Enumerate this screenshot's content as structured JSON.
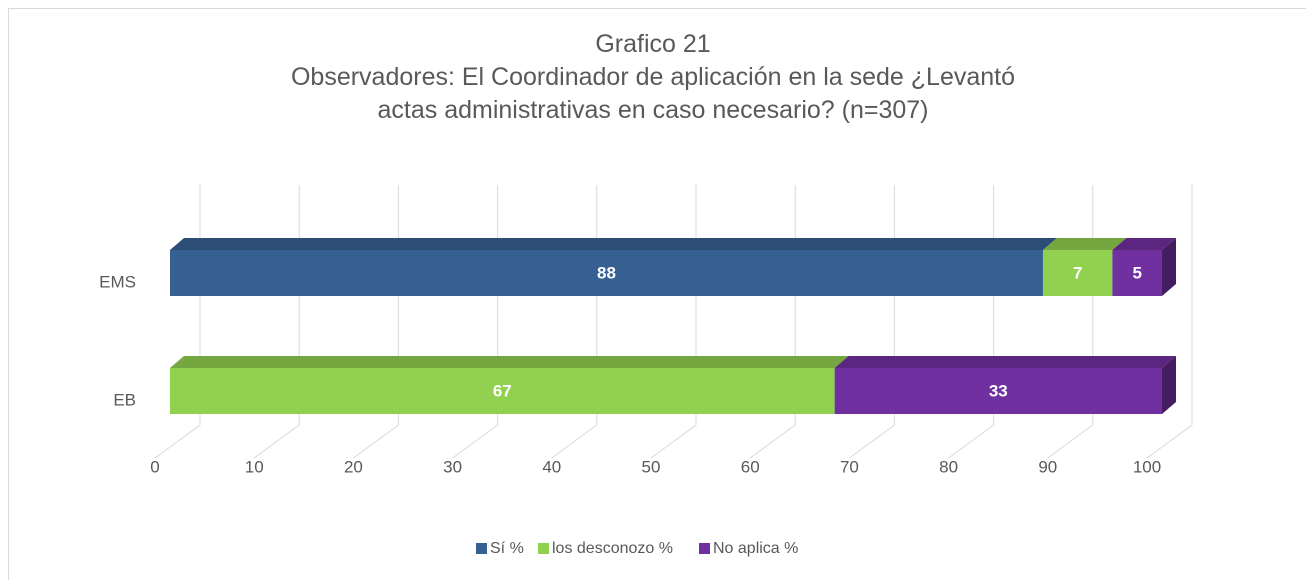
{
  "chart_data": {
    "type": "bar",
    "orientation": "horizontal",
    "stacked": true,
    "three_d": true,
    "title": "Grafico 21",
    "subtitle": "Observadores: El Coordinador de aplicación en la sede ¿Levantó actas administrativas en caso necesario? (n=307)",
    "categories": [
      "EMS",
      "EB"
    ],
    "series": [
      {
        "name": "Sí %",
        "color": "#376092",
        "values": [
          88,
          0
        ]
      },
      {
        "name": "los desconozo %",
        "color": "#92d050",
        "values": [
          7,
          67
        ]
      },
      {
        "name": "No aplica %",
        "color": "#7030a0",
        "values": [
          5,
          33
        ]
      }
    ],
    "xlim": [
      0,
      100
    ],
    "xticks": [
      0,
      10,
      20,
      30,
      40,
      50,
      60,
      70,
      80,
      90,
      100
    ],
    "grid": true,
    "legend": "bottom"
  }
}
